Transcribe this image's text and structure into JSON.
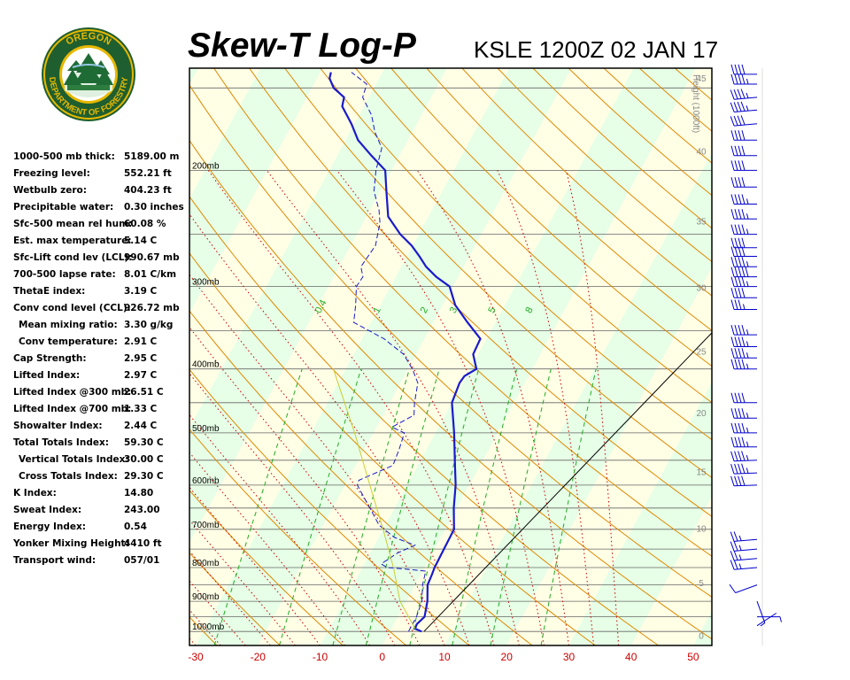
{
  "header": {
    "title": "Skew-T Log-P",
    "subtitle": "KSLE 1200Z 02 JAN 17"
  },
  "logo": {
    "top_text": "OREGON",
    "bottom_text": "DEPARTMENT OF FORESTRY",
    "colors": {
      "ring": "#1f5e2e",
      "gold": "#e6b800",
      "tree": "#1f6b35"
    }
  },
  "indices": [
    {
      "label": "1000-500 mb thick:",
      "value": "5189.00 m"
    },
    {
      "label": "Freezing level:",
      "value": "552.21 ft"
    },
    {
      "label": "Wetbulb zero:",
      "value": "404.23 ft"
    },
    {
      "label": "Precipitable water:",
      "value": "0.30 inches"
    },
    {
      "label": "Sfc-500 mean rel hum:",
      "value": "60.08 %"
    },
    {
      "label": "Est. max temperature:",
      "value": "5.14 C"
    },
    {
      "label": "Sfc-Lift cond lev (LCL):",
      "value": "990.67 mb"
    },
    {
      "label": "700-500 lapse rate:",
      "value": "8.01 C/km"
    },
    {
      "label": "ThetaE index:",
      "value": "3.19 C"
    },
    {
      "label": "Conv cond level (CCL):",
      "value": "926.72 mb"
    },
    {
      "label": "Mean mixing ratio:",
      "value": "3.30 g/kg",
      "indent": true
    },
    {
      "label": "Conv temperature:",
      "value": "2.91 C",
      "indent": true
    },
    {
      "label": "Cap Strength:",
      "value": "2.95 C"
    },
    {
      "label": "Lifted Index:",
      "value": "2.97 C"
    },
    {
      "label": "Lifted Index @300 mb:",
      "value": "26.51 C"
    },
    {
      "label": "Lifted Index @700 mb:",
      "value": "1.33 C"
    },
    {
      "label": "Showalter Index:",
      "value": "2.44 C"
    },
    {
      "label": "Total Totals Index:",
      "value": "59.30 C"
    },
    {
      "label": "Vertical Totals Index:",
      "value": "30.00 C",
      "indent": true
    },
    {
      "label": "Cross Totals Index:",
      "value": "29.30 C",
      "indent": true
    },
    {
      "label": "K Index:",
      "value": "14.80"
    },
    {
      "label": "Sweat Index:",
      "value": "243.00"
    },
    {
      "label": "Energy Index:",
      "value": "0.54"
    },
    {
      "label": "Yonker Mixing Height:",
      "value": "4410 ft"
    },
    {
      "label": "Transport wind:",
      "value": "057/01"
    }
  ],
  "chart_data": {
    "type": "line",
    "title": "Skew-T Log-P",
    "subtitle": "KSLE 1200Z 02 JAN 17",
    "xlabel": "",
    "ylabel": "",
    "x_ticks": [
      "-30",
      "-20",
      "-10",
      "0",
      "10",
      "20",
      "30",
      "40",
      "50"
    ],
    "xlim": [
      -31,
      53
    ],
    "pressure_range": [
      1050,
      140
    ],
    "pressure_labels": [
      {
        "p": 1000,
        "label": "1000mb"
      },
      {
        "p": 900,
        "label": "900mb"
      },
      {
        "p": 800,
        "label": "800mb"
      },
      {
        "p": 700,
        "label": "700mb"
      },
      {
        "p": 600,
        "label": "600mb"
      },
      {
        "p": 500,
        "label": "500mb"
      },
      {
        "p": 400,
        "label": "400mb"
      },
      {
        "p": 300,
        "label": "300mb"
      },
      {
        "p": 200,
        "label": "200mb"
      }
    ],
    "height_axis": {
      "title": "Height (1000ft)",
      "ticks": [
        0,
        5,
        10,
        15,
        20,
        25,
        30,
        35,
        40,
        45,
        50
      ],
      "max_kft": 56
    },
    "mixing_ratio_labels": [
      "0.4",
      "1",
      "2",
      "3",
      "5",
      "8"
    ],
    "series": [
      {
        "name": "",
        "color": "#1a1acc",
        "style": "solid",
        "points": [
          [
            1000,
            5.1
          ],
          [
            990,
            3.8
          ],
          [
            975,
            3.7
          ],
          [
            950,
            4.3
          ],
          [
            900,
            3.4
          ],
          [
            850,
            2.0
          ],
          [
            820,
            1.8
          ],
          [
            800,
            1.6
          ],
          [
            750,
            1.5
          ],
          [
            700,
            1.4
          ],
          [
            650,
            -0.5
          ],
          [
            600,
            -2.2
          ],
          [
            550,
            -4.5
          ],
          [
            500,
            -7.0
          ],
          [
            450,
            -10.0
          ],
          [
            420,
            -10.5
          ],
          [
            410,
            -10.3
          ],
          [
            400,
            -9.0
          ],
          [
            380,
            -10.8
          ],
          [
            360,
            -11.0
          ],
          [
            340,
            -14.5
          ],
          [
            320,
            -18.0
          ],
          [
            300,
            -20.5
          ],
          [
            290,
            -23.5
          ],
          [
            280,
            -26.0
          ],
          [
            270,
            -28.0
          ],
          [
            260,
            -30.2
          ],
          [
            250,
            -33.0
          ],
          [
            235,
            -36.5
          ],
          [
            215,
            -39.0
          ],
          [
            200,
            -41.0
          ],
          [
            190,
            -44.5
          ],
          [
            180,
            -48.0
          ],
          [
            170,
            -50.5
          ],
          [
            160,
            -53.5
          ],
          [
            155,
            -54.0
          ],
          [
            150,
            -56.5
          ],
          [
            145,
            -58.0
          ],
          [
            142,
            -58.3
          ]
        ]
      },
      {
        "name": "",
        "color": "#1a1acc",
        "style": "dashed",
        "points": [
          [
            1000,
            3.0
          ],
          [
            950,
            3.0
          ],
          [
            900,
            2.5
          ],
          [
            850,
            1.2
          ],
          [
            810,
            0.5
          ],
          [
            805,
            -2.5
          ],
          [
            800,
            -6.0
          ],
          [
            790,
            -7.3
          ],
          [
            760,
            -5.6
          ],
          [
            740,
            -3.5
          ],
          [
            720,
            -7.5
          ],
          [
            690,
            -11.0
          ],
          [
            650,
            -14.0
          ],
          [
            600,
            -18.0
          ],
          [
            590,
            -18.2
          ],
          [
            560,
            -14.0
          ],
          [
            530,
            -14.4
          ],
          [
            500,
            -15.0
          ],
          [
            490,
            -17.5
          ],
          [
            470,
            -15.0
          ],
          [
            450,
            -16.0
          ],
          [
            420,
            -17.2
          ],
          [
            400,
            -19.3
          ],
          [
            380,
            -22.0
          ],
          [
            360,
            -26.5
          ],
          [
            340,
            -32.8
          ],
          [
            320,
            -34.0
          ],
          [
            300,
            -35.5
          ],
          [
            290,
            -35.3
          ],
          [
            280,
            -36.5
          ],
          [
            260,
            -36.0
          ],
          [
            240,
            -37.3
          ],
          [
            230,
            -38.5
          ],
          [
            215,
            -41.0
          ],
          [
            200,
            -42.5
          ],
          [
            185,
            -43.5
          ],
          [
            175,
            -46.0
          ],
          [
            165,
            -48.0
          ],
          [
            155,
            -51.0
          ],
          [
            148,
            -51.5
          ],
          [
            142,
            -55.0
          ]
        ]
      },
      {
        "name": "",
        "color": "#cccc33",
        "style": "solid",
        "points": [
          [
            990,
            3.8
          ],
          [
            900,
            -1.0
          ],
          [
            800,
            -5.0
          ],
          [
            700,
            -10.0
          ],
          [
            600,
            -16.0
          ],
          [
            500,
            -23.0
          ],
          [
            400,
            -32.0
          ]
        ]
      },
      {
        "name": "",
        "color": "#000000",
        "style": "solid",
        "points": [
          [
            1000,
            5.5
          ],
          [
            140,
            43.6
          ]
        ]
      }
    ],
    "wind_barbs": {
      "color": "#0000cc",
      "levels": [
        {
          "p": 980,
          "dir": 57,
          "kt": 1
        },
        {
          "p": 950,
          "dir": 90,
          "kt": 5
        },
        {
          "p": 900,
          "dir": 160,
          "kt": 5
        },
        {
          "p": 850,
          "dir": 250,
          "kt": 10
        },
        {
          "p": 800,
          "dir": 265,
          "kt": 25
        },
        {
          "p": 775,
          "dir": 265,
          "kt": 25
        },
        {
          "p": 750,
          "dir": 265,
          "kt": 25
        },
        {
          "p": 725,
          "dir": 265,
          "kt": 25
        },
        {
          "p": 600,
          "dir": 268,
          "kt": 40
        },
        {
          "p": 575,
          "dir": 268,
          "kt": 45
        },
        {
          "p": 550,
          "dir": 268,
          "kt": 45
        },
        {
          "p": 525,
          "dir": 270,
          "kt": 45
        },
        {
          "p": 500,
          "dir": 270,
          "kt": 45
        },
        {
          "p": 475,
          "dir": 270,
          "kt": 45
        },
        {
          "p": 450,
          "dir": 270,
          "kt": 40
        },
        {
          "p": 400,
          "dir": 270,
          "kt": 45
        },
        {
          "p": 385,
          "dir": 270,
          "kt": 45
        },
        {
          "p": 370,
          "dir": 270,
          "kt": 45
        },
        {
          "p": 355,
          "dir": 270,
          "kt": 45
        },
        {
          "p": 325,
          "dir": 270,
          "kt": 35
        },
        {
          "p": 312,
          "dir": 270,
          "kt": 40
        },
        {
          "p": 300,
          "dir": 270,
          "kt": 45
        },
        {
          "p": 290,
          "dir": 270,
          "kt": 50
        },
        {
          "p": 280,
          "dir": 270,
          "kt": 45
        },
        {
          "p": 270,
          "dir": 270,
          "kt": 40
        },
        {
          "p": 262,
          "dir": 270,
          "kt": 40
        },
        {
          "p": 250,
          "dir": 270,
          "kt": 45
        },
        {
          "p": 237,
          "dir": 270,
          "kt": 45
        },
        {
          "p": 225,
          "dir": 270,
          "kt": 45
        },
        {
          "p": 212,
          "dir": 270,
          "kt": 40
        },
        {
          "p": 200,
          "dir": 270,
          "kt": 40
        },
        {
          "p": 190,
          "dir": 270,
          "kt": 40
        },
        {
          "p": 180,
          "dir": 270,
          "kt": 40
        },
        {
          "p": 170,
          "dir": 265,
          "kt": 40
        },
        {
          "p": 162,
          "dir": 265,
          "kt": 45
        },
        {
          "p": 155,
          "dir": 265,
          "kt": 45
        },
        {
          "p": 148,
          "dir": 270,
          "kt": 45
        },
        {
          "p": 143,
          "dir": 270,
          "kt": 40
        }
      ]
    },
    "colors": {
      "temperature_trace": "#1a1acc",
      "dewpoint_trace": "#1a1acc",
      "dry_adiabat": "#e08800",
      "moist_adiabat": "#cc0000",
      "mixing_ratio": "#22aa22",
      "band_yellow": "#ffffe6",
      "band_green": "#e6ffe6",
      "isobar": "#666666",
      "tick_label": "#cc0000",
      "height_label": "#888888"
    }
  }
}
